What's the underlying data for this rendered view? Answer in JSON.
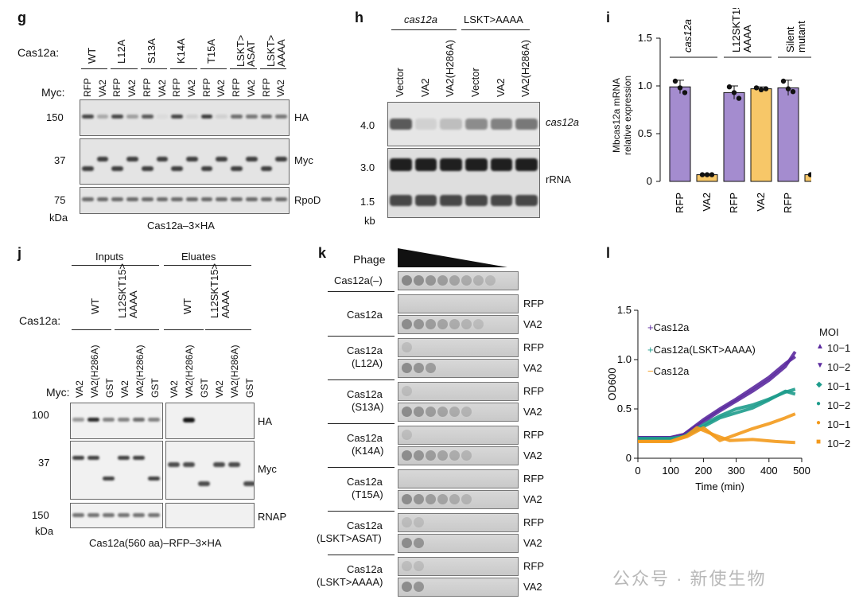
{
  "panel_g": {
    "label": "g",
    "cas12a_label": "Cas12a:",
    "myc_label": "Myc:",
    "variants": [
      "WT",
      "L12A",
      "S13A",
      "K14A",
      "T15A",
      "LSKT>\nASAT",
      "LSKT>\nAAAA"
    ],
    "lanes": [
      "RFP",
      "VA2",
      "RFP",
      "VA2",
      "RFP",
      "VA2",
      "RFP",
      "VA2",
      "RFP",
      "VA2",
      "RFP",
      "VA2",
      "RFP",
      "VA2"
    ],
    "markers": [
      "150",
      "37",
      "75"
    ],
    "kda": "kDa",
    "blot_labels": [
      "HA",
      "Myc",
      "RpoD"
    ],
    "caption": "Cas12a–3×HA"
  },
  "panel_h": {
    "label": "h",
    "group1": "cas12a",
    "group2": "LSKT>AAAA",
    "lanes": [
      "Vector",
      "VA2",
      "VA2(H286A)",
      "Vector",
      "VA2",
      "VA2(H286A)"
    ],
    "markers": [
      "4.0",
      "3.0",
      "1.5"
    ],
    "kb": "kb",
    "blot_labels": [
      "cas12a",
      "rRNA"
    ]
  },
  "panel_i": {
    "label": "i",
    "ylabel_line1": "Mbcas12a mRNA",
    "ylabel_line2": "relative expression",
    "groups": [
      "cas12a",
      "L12SKT15>\nAAAA",
      "Silent\nmutant"
    ],
    "chart_data": {
      "type": "bar",
      "categories": [
        "RFP",
        "VA2",
        "RFP",
        "VA2",
        "RFP",
        "VA2"
      ],
      "values": [
        0.99,
        0.07,
        0.93,
        0.97,
        0.98,
        0.07
      ],
      "errors": [
        0.07,
        0.01,
        0.07,
        0.02,
        0.08,
        0.01
      ],
      "points": [
        [
          1.05,
          0.98,
          0.93
        ],
        [
          0.07,
          0.07,
          0.07
        ],
        [
          0.99,
          0.93,
          0.87
        ],
        [
          0.98,
          0.96,
          0.97
        ],
        [
          1.05,
          0.97,
          0.94
        ],
        [
          0.07,
          0.08,
          0.07
        ]
      ],
      "colors": [
        "#a48ccf",
        "#f7c768",
        "#a48ccf",
        "#f7c768",
        "#a48ccf",
        "#f7c768"
      ],
      "ylim": [
        0,
        1.5
      ],
      "yticks": [
        "0",
        "0.5",
        "1.0",
        "1.5"
      ]
    }
  },
  "panel_j": {
    "label": "j",
    "inputs": "Inputs",
    "eluates": "Eluates",
    "cas12a_label": "Cas12a:",
    "myc_label": "Myc:",
    "wt": "WT",
    "mut": "L12SKT15>\nAAAA",
    "lanes": [
      "VA2",
      "VA2(H286A)",
      "GST",
      "VA2",
      "VA2(H286A)",
      "GST"
    ],
    "markers": [
      "100",
      "37",
      "150"
    ],
    "kda": "kDa",
    "blot_labels": [
      "HA",
      "Myc",
      "RNAP"
    ],
    "caption": "Cas12a(560 aa)–RFP–3×HA"
  },
  "panel_k": {
    "label": "k",
    "phage": "Phage",
    "control": "Cas12a(–)",
    "strains": [
      "Cas12a",
      "Cas12a\n(L12A)",
      "Cas12a\n(S13A)",
      "Cas12a\n(K14A)",
      "Cas12a\n(T15A)",
      "Cas12a\n(LSKT>ASAT)",
      "Cas12a\n(LSKT>AAAA)"
    ],
    "rows": [
      "RFP",
      "VA2"
    ],
    "vA2_spots": [
      7,
      3,
      6,
      6,
      6,
      2,
      2
    ],
    "rfp_spots": [
      0,
      1,
      1,
      1,
      0,
      2,
      2
    ]
  },
  "panel_l": {
    "label": "l",
    "legend": [
      "Cas12a",
      "Cas12a(LSKT>AAAA)",
      "Cas12a"
    ],
    "legend_markers": [
      "+",
      "+",
      "−"
    ],
    "moi_title": "MOI",
    "moi": [
      "10−1",
      "10−2",
      "10−1",
      "10−2",
      "10−1",
      "10−2"
    ],
    "colors": [
      "#5b2a9e",
      "#1e9c8c",
      "#f39a1c"
    ],
    "chart_data": {
      "type": "line",
      "xlabel": "Time (min)",
      "ylabel": "OD600",
      "xlim": [
        0,
        500
      ],
      "ylim": [
        0,
        1.5
      ],
      "xticks": [
        "0",
        "100",
        "200",
        "300",
        "400",
        "500"
      ],
      "yticks": [
        "0",
        "0.5",
        "1.0",
        "1.5"
      ],
      "series": [
        {
          "x": [
            0,
            100,
            140,
            200,
            250,
            300,
            350,
            400,
            450,
            480
          ],
          "y": [
            0.21,
            0.21,
            0.24,
            0.39,
            0.5,
            0.6,
            0.71,
            0.82,
            0.96,
            1.03
          ]
        },
        {
          "x": [
            0,
            100,
            140,
            200,
            250,
            300,
            350,
            400,
            450,
            480
          ],
          "y": [
            0.21,
            0.21,
            0.24,
            0.37,
            0.48,
            0.58,
            0.68,
            0.79,
            0.93,
            1.08
          ]
        },
        {
          "x": [
            0,
            100,
            140,
            200,
            250,
            300,
            350,
            400,
            450,
            480
          ],
          "y": [
            0.2,
            0.2,
            0.22,
            0.34,
            0.43,
            0.5,
            0.54,
            0.6,
            0.67,
            0.7
          ]
        },
        {
          "x": [
            0,
            100,
            140,
            200,
            250,
            300,
            350,
            400,
            450,
            480
          ],
          "y": [
            0.2,
            0.2,
            0.22,
            0.32,
            0.41,
            0.46,
            0.51,
            0.59,
            0.68,
            0.65
          ]
        },
        {
          "x": [
            0,
            100,
            150,
            200,
            250,
            300,
            350,
            400,
            450,
            480
          ],
          "y": [
            0.17,
            0.17,
            0.22,
            0.31,
            0.18,
            0.24,
            0.3,
            0.35,
            0.41,
            0.45
          ]
        },
        {
          "x": [
            0,
            100,
            150,
            180,
            230,
            280,
            350,
            420,
            480
          ],
          "y": [
            0.17,
            0.17,
            0.23,
            0.31,
            0.24,
            0.18,
            0.19,
            0.17,
            0.16
          ]
        }
      ]
    }
  },
  "watermark": "公众号 · 新使生物"
}
